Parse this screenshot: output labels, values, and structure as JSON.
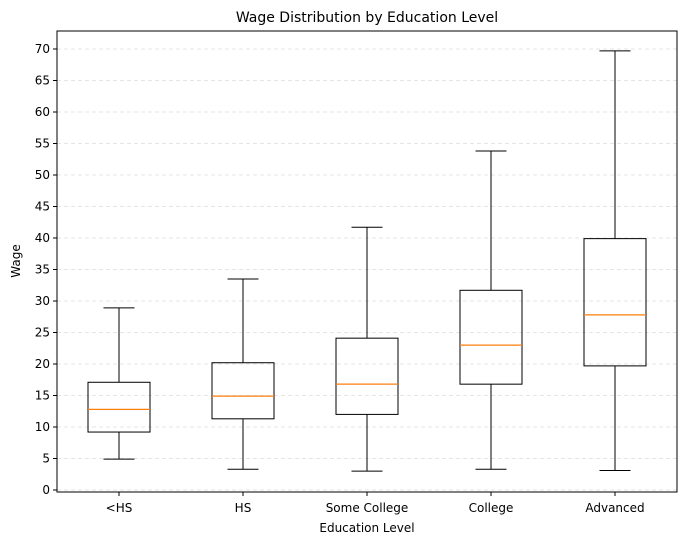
{
  "chart_data": {
    "type": "boxplot",
    "title": "Wage Distribution by Education Level",
    "xlabel": "Education Level",
    "ylabel": "Wage",
    "ylim": [
      0,
      73
    ],
    "yticks": [
      "0",
      "5",
      "10",
      "15",
      "20",
      "25",
      "30",
      "35",
      "40",
      "45",
      "50",
      "55",
      "60",
      "65",
      "70"
    ],
    "grid": "y-dashed",
    "categories": [
      "<HS",
      "HS",
      "Some College",
      "College",
      "Advanced"
    ],
    "boxes": [
      {
        "whisker_low": 4.9,
        "q1": 9.2,
        "median": 12.8,
        "q3": 17.1,
        "whisker_high": 28.9
      },
      {
        "whisker_low": 3.3,
        "q1": 11.3,
        "median": 14.9,
        "q3": 20.2,
        "whisker_high": 33.5
      },
      {
        "whisker_low": 3.0,
        "q1": 12.0,
        "median": 16.8,
        "q3": 24.1,
        "whisker_high": 41.7
      },
      {
        "whisker_low": 3.3,
        "q1": 16.8,
        "median": 23.0,
        "q3": 31.7,
        "whisker_high": 53.8
      },
      {
        "whisker_low": 3.1,
        "q1": 19.7,
        "median": 27.8,
        "q3": 39.9,
        "whisker_high": 69.7
      }
    ],
    "colors": {
      "box": "#000000",
      "median": "#ff7f0e",
      "grid": "#dddddd"
    }
  }
}
